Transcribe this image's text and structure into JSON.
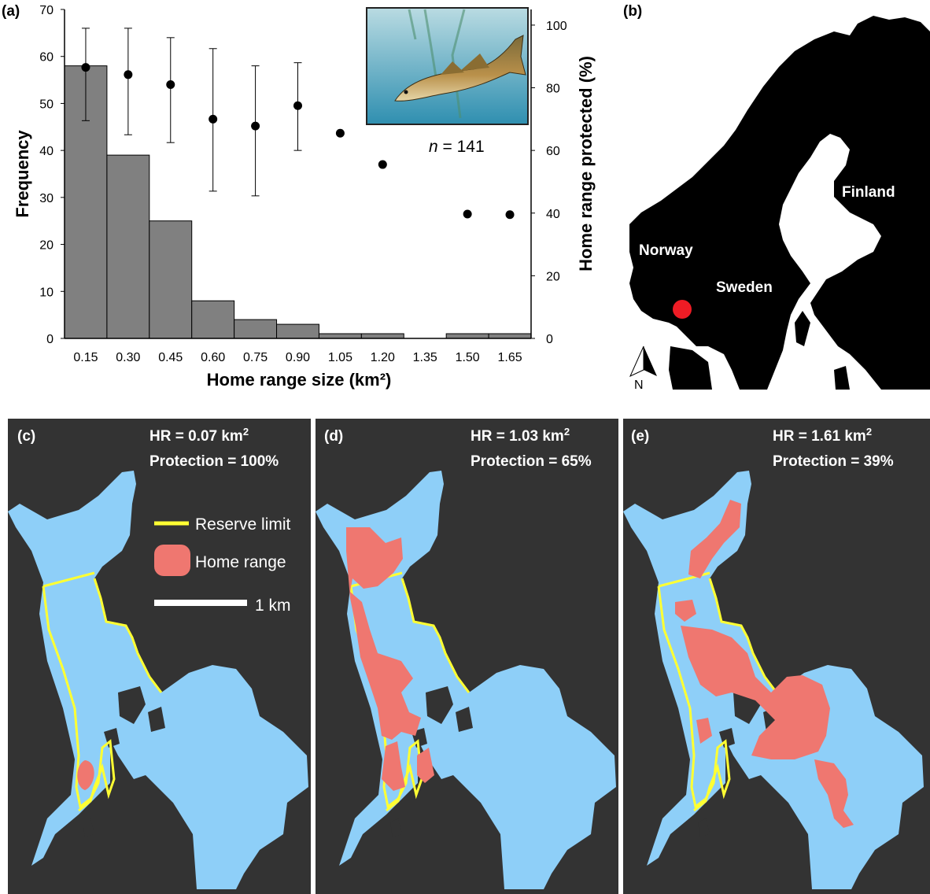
{
  "panels": {
    "a": "(a)",
    "b": "(b)",
    "c": "(c)",
    "d": "(d)",
    "e": "(e)"
  },
  "chart_data": {
    "type": "bar",
    "categories": [
      "0.15",
      "0.30",
      "0.45",
      "0.60",
      "0.75",
      "0.90",
      "1.05",
      "1.20",
      "1.35",
      "1.50",
      "1.65"
    ],
    "xlabel": "Home range size (km²)",
    "ylabel": "Frequency",
    "ylim": [
      0,
      70
    ],
    "yticks": [
      "0",
      "10",
      "20",
      "30",
      "40",
      "50",
      "60",
      "70"
    ],
    "series": [
      {
        "type": "bar",
        "values": [
          58,
          39,
          25,
          8,
          4,
          3,
          1,
          1,
          0,
          1,
          1
        ]
      },
      {
        "type": "scatter",
        "axis": "right",
        "values": [
          86.5,
          84.2,
          81.0,
          70.0,
          67.8,
          74.3,
          65.5,
          55.5,
          null,
          39.7,
          39.5
        ],
        "error_low": [
          69.5,
          65.0,
          62.5,
          47.0,
          45.5,
          60.0,
          null,
          null,
          null,
          null,
          null
        ],
        "error_high": [
          99.0,
          99.0,
          96.0,
          92.5,
          87.0,
          88.0,
          null,
          null,
          null,
          null,
          null
        ]
      }
    ],
    "y2label": "Home range protected (%)",
    "y2lim": [
      0,
      105
    ],
    "y2ticks": [
      "0",
      "20",
      "40",
      "60",
      "80",
      "100"
    ],
    "annotation": {
      "n_italic": "n",
      "n_rest": " = 141"
    }
  },
  "map_b": {
    "labels": {
      "finland": "Finland",
      "norway": "Norway",
      "sweden": "Sweden"
    },
    "north": "N",
    "marker_color": "#ee1c25"
  },
  "maps": [
    {
      "hr": "HR = 0.07 km",
      "hr_sup": "2",
      "protection": "Protection = 100%"
    },
    {
      "hr": "HR = 1.03 km",
      "hr_sup": "2",
      "protection": "Protection = 65%"
    },
    {
      "hr": "HR = 1.61 km",
      "hr_sup": "2",
      "protection": "Protection = 39%"
    }
  ],
  "legend": {
    "reserve": "Reserve limit",
    "home": "Home range",
    "scale": "1 km"
  },
  "colors": {
    "bar": "#808080",
    "water": "#8ecff8",
    "land": "#333333",
    "reserve": "#ffff33",
    "home_range": "#ef7770"
  }
}
